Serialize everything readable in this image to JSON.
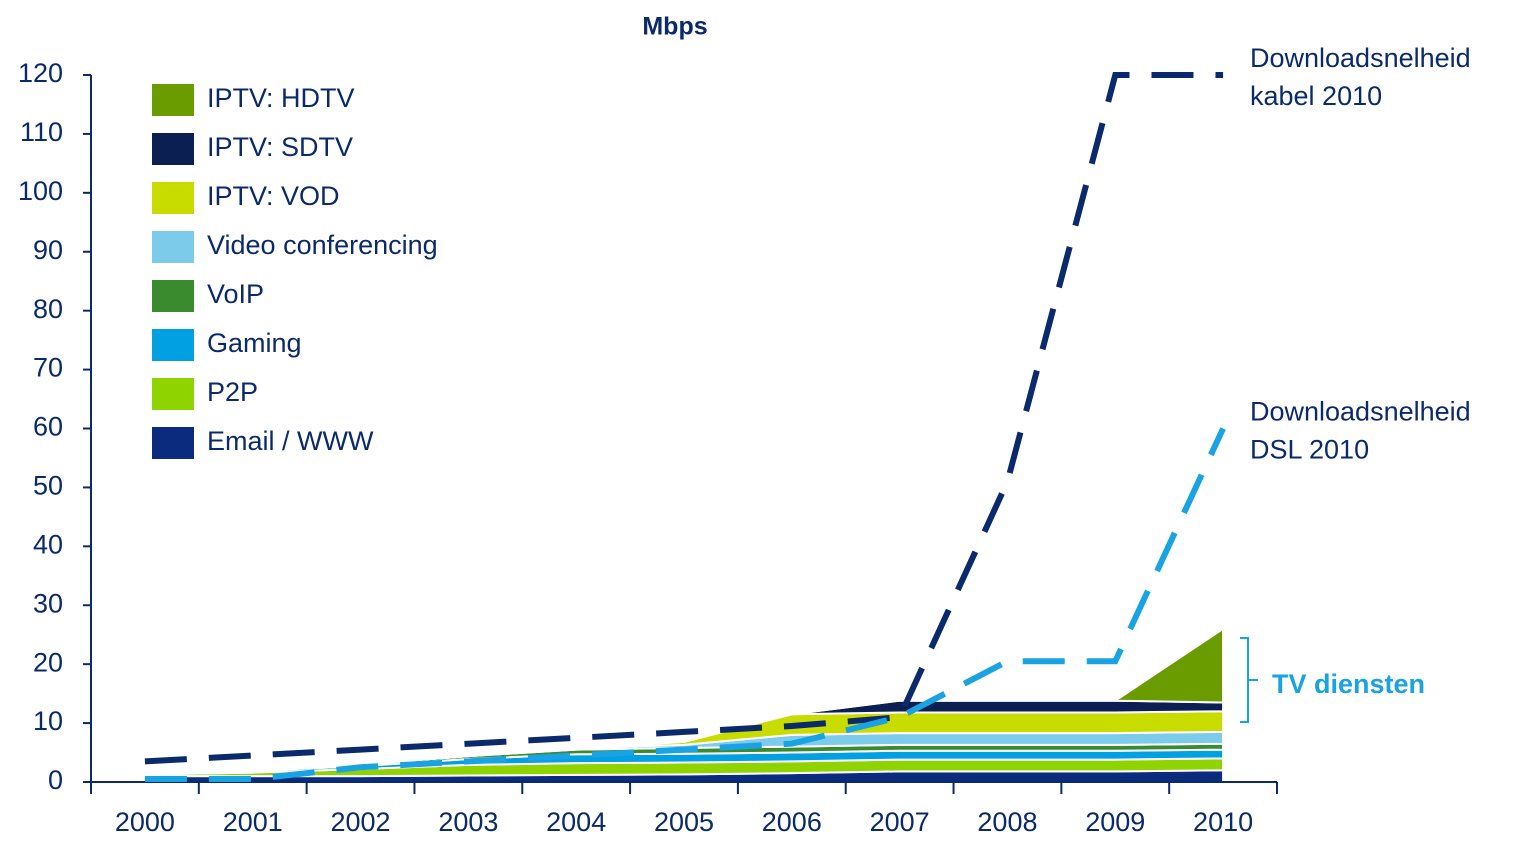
{
  "chart_data": {
    "type": "stacked_area",
    "title": "Mbps",
    "categories": [
      "2000",
      "2001",
      "2002",
      "2003",
      "2004",
      "2005",
      "2006",
      "2007",
      "2008",
      "2009",
      "2010"
    ],
    "ylim": [
      0,
      120
    ],
    "yticks": [
      0,
      10,
      20,
      30,
      40,
      50,
      60,
      70,
      80,
      90,
      100,
      110,
      120
    ],
    "series": [
      {
        "name": "Email / WWW",
        "color": "#0b2c7e",
        "values": [
          1,
          1,
          1,
          1.1,
          1.2,
          1.3,
          1.5,
          1.8,
          1.8,
          1.8,
          2
        ]
      },
      {
        "name": "P2P",
        "color": "#8fd400",
        "values": [
          0.3,
          0.6,
          1.2,
          1.8,
          2,
          2,
          2,
          2,
          2,
          2,
          2
        ]
      },
      {
        "name": "Gaming",
        "color": "#00a0e2",
        "values": [
          0.1,
          0.3,
          0.5,
          1,
          1.5,
          1.5,
          1.5,
          1.5,
          1.5,
          1.5,
          1.5
        ]
      },
      {
        "name": "VoIP",
        "color": "#3a8a2e",
        "values": [
          0,
          0.1,
          0.3,
          0.5,
          0.8,
          1,
          1,
          1,
          1,
          1,
          1
        ]
      },
      {
        "name": "Video conferencing",
        "color": "#7ccbea",
        "values": [
          0,
          0,
          0,
          0,
          0.3,
          0.5,
          2,
          2,
          2,
          2,
          2
        ]
      },
      {
        "name": "IPTV: VOD",
        "color": "#c9dc00",
        "values": [
          0,
          0,
          0,
          0,
          0,
          0.5,
          3.5,
          3.5,
          3.5,
          3.5,
          3.5
        ]
      },
      {
        "name": "IPTV: SDTV",
        "color": "#0b1f52",
        "values": [
          0,
          0,
          0,
          0,
          0,
          0,
          0,
          2,
          2,
          2,
          1.5
        ]
      },
      {
        "name": "IPTV: HDTV",
        "color": "#6a9c00",
        "values": [
          0,
          0,
          0,
          0,
          0,
          0,
          0,
          0,
          0,
          0,
          12.5
        ]
      }
    ],
    "lines": [
      {
        "label": [
          "Downloadsnelheid",
          "kabel 2010"
        ],
        "color": "#0b2a6c",
        "values": [
          3.5,
          4.5,
          5.5,
          6.5,
          7.5,
          8.5,
          9.5,
          11,
          51,
          120,
          120
        ]
      },
      {
        "label": [
          "Downloadsnelheid",
          "DSL 2010"
        ],
        "color": "#1aa3e2",
        "values": [
          0.5,
          0.5,
          2.5,
          3.5,
          4.5,
          5.5,
          6.5,
          11,
          20.5,
          20.5,
          60
        ]
      }
    ],
    "annotation": "TV diensten"
  }
}
